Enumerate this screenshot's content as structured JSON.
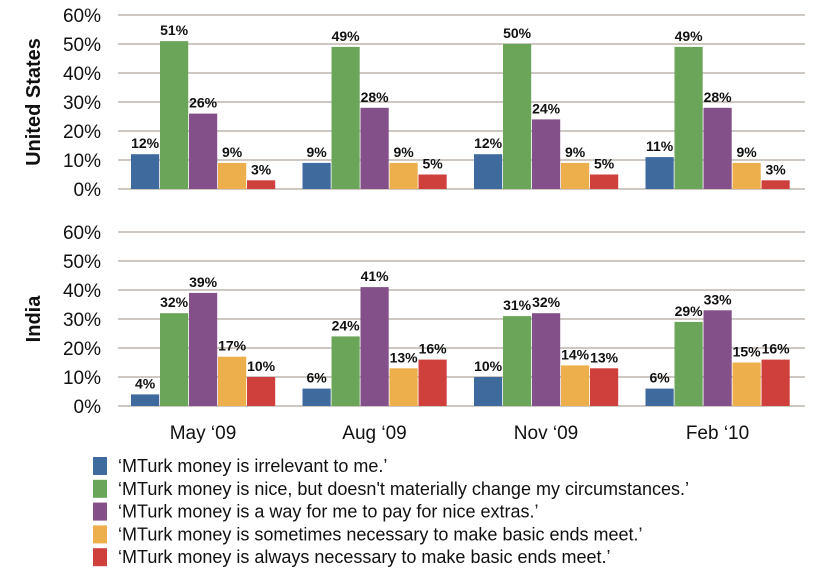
{
  "chart_data": {
    "type": "bar",
    "categories": [
      "May ‘09",
      "Aug ‘09",
      "Nov ‘09",
      "Feb ‘10"
    ],
    "ylim": [
      0,
      60
    ],
    "yticks": [
      "0%",
      "10%",
      "20%",
      "30%",
      "40%",
      "50%",
      "60%"
    ],
    "grid": true,
    "legend_placement": "bottom",
    "legend": [
      "‘MTurk money is irrelevant to me.’",
      "‘MTurk money is nice, but doesn't materially change my circumstances.’",
      "‘MTurk money is a way for me to pay for nice extras.’",
      "‘MTurk money is sometimes necessary to make basic ends meet.’",
      "‘MTurk money is always necessary to make basic ends meet.’"
    ],
    "colors": [
      "#3e6a9e",
      "#6ba55a",
      "#835089",
      "#ecaf4c",
      "#cf403c"
    ],
    "panels": [
      {
        "label": "United States",
        "series": [
          {
            "name": "‘MTurk money is irrelevant to me.’",
            "values": [
              12,
              9,
              12,
              11
            ]
          },
          {
            "name": "‘MTurk money is nice, but doesn't materially change my circumstances.’",
            "values": [
              51,
              49,
              50,
              49
            ]
          },
          {
            "name": "‘MTurk money is a way for me to pay for nice extras.’",
            "values": [
              26,
              28,
              24,
              28
            ]
          },
          {
            "name": "‘MTurk money is sometimes necessary to make basic ends meet.’",
            "values": [
              9,
              9,
              9,
              9
            ]
          },
          {
            "name": "‘MTurk money is always necessary to make basic ends meet.’",
            "values": [
              3,
              5,
              5,
              3
            ]
          }
        ]
      },
      {
        "label": "India",
        "series": [
          {
            "name": "‘MTurk money is irrelevant to me.’",
            "values": [
              4,
              6,
              10,
              6
            ]
          },
          {
            "name": "‘MTurk money is nice, but doesn't materially change my circumstances.’",
            "values": [
              32,
              24,
              31,
              29
            ]
          },
          {
            "name": "‘MTurk money is a way for me to pay for nice extras.’",
            "values": [
              39,
              41,
              32,
              33
            ]
          },
          {
            "name": "‘MTurk money is sometimes necessary to make basic ends meet.’",
            "values": [
              17,
              13,
              14,
              15
            ]
          },
          {
            "name": "‘MTurk money is always necessary to make basic ends meet.’",
            "values": [
              10,
              16,
              13,
              16
            ]
          }
        ]
      }
    ]
  }
}
